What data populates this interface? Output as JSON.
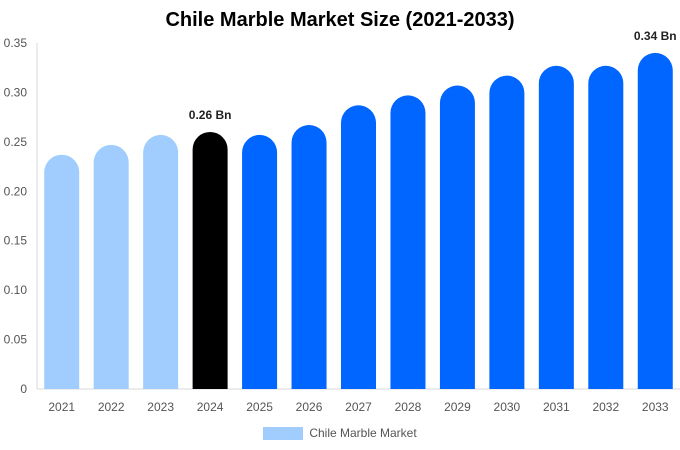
{
  "chart_data": {
    "type": "bar",
    "title": "Chile Marble Market Size (2021-2033)",
    "categories": [
      "2021",
      "2022",
      "2023",
      "2024",
      "2025",
      "2026",
      "2027",
      "2028",
      "2029",
      "2030",
      "2031",
      "2032",
      "2033"
    ],
    "series": [
      {
        "name": "Chile Marble Market",
        "values": [
          0.237,
          0.247,
          0.257,
          0.26,
          0.257,
          0.267,
          0.287,
          0.297,
          0.307,
          0.317,
          0.327,
          0.327,
          0.34
        ]
      }
    ],
    "bar_colors": [
      "#a0cdfd",
      "#a0cdfd",
      "#a0cdfd",
      "#000000",
      "#0066ff",
      "#0066ff",
      "#0066ff",
      "#0066ff",
      "#0066ff",
      "#0066ff",
      "#0066ff",
      "#0066ff",
      "#0066ff"
    ],
    "data_labels": [
      {
        "category": "2024",
        "text": "0.26 Bn"
      },
      {
        "category": "2033",
        "text": "0.34 Bn"
      }
    ],
    "yticks": [
      0,
      0.05,
      0.1,
      0.15,
      0.2,
      0.25,
      0.3,
      0.35
    ],
    "ytick_labels": [
      "0",
      "0.05",
      "0.10",
      "0.15",
      "0.20",
      "0.25",
      "0.30",
      "0.35"
    ],
    "ylim": [
      0,
      0.35
    ],
    "xlabel": "",
    "ylabel": "",
    "grid": false,
    "legend": {
      "position": "bottom",
      "label": "Chile Marble Market",
      "color": "#a0cdfd"
    }
  }
}
